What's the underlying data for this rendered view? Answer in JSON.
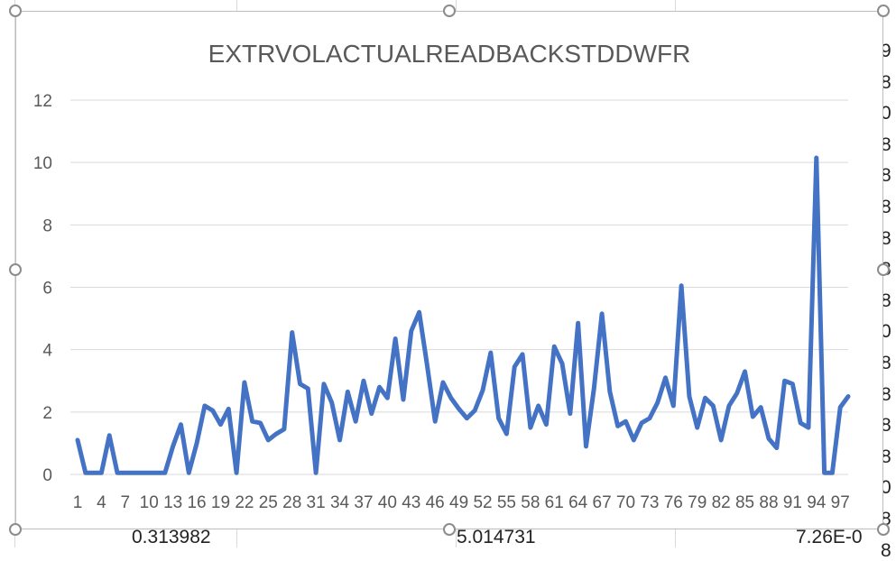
{
  "sheet": {
    "bottom_cells": [
      "0.313982",
      "5.014731",
      "7.26E-0"
    ],
    "right_fragments": [
      "9",
      "8",
      "0",
      "8",
      "8",
      "8",
      "8",
      "8",
      "8",
      "0",
      "8",
      "8",
      "8",
      "8",
      "0",
      "8",
      "8"
    ]
  },
  "chart_data": {
    "type": "line",
    "title": "EXTRVOLACTUALREADBACKSTDDWFR",
    "xlabel": "",
    "ylabel": "",
    "ylim": [
      0,
      12
    ],
    "yticks": [
      0,
      2,
      4,
      6,
      8,
      10,
      12
    ],
    "x_tick_labels": [
      "1",
      "4",
      "7",
      "10",
      "13",
      "16",
      "19",
      "22",
      "25",
      "28",
      "31",
      "34",
      "37",
      "40",
      "43",
      "46",
      "49",
      "52",
      "55",
      "58",
      "61",
      "64",
      "67",
      "70",
      "73",
      "76",
      "79",
      "82",
      "85",
      "88",
      "91",
      "94",
      "97"
    ],
    "grid": "horizontal",
    "legend": "none",
    "line_color": "#4472c4",
    "series": [
      {
        "values": [
          1.1,
          0.05,
          0.05,
          0.05,
          1.25,
          0.05,
          0.05,
          0.05,
          0.05,
          0.05,
          0.05,
          0.05,
          0.9,
          1.6,
          0.05,
          1.0,
          2.2,
          2.05,
          1.6,
          2.1,
          0.05,
          2.95,
          1.7,
          1.65,
          1.1,
          1.3,
          1.45,
          4.55,
          2.9,
          2.75,
          0.05,
          2.9,
          2.3,
          1.1,
          2.65,
          1.7,
          3.0,
          1.95,
          2.8,
          2.45,
          4.35,
          2.4,
          4.6,
          5.2,
          3.5,
          1.7,
          2.95,
          2.45,
          2.1,
          1.8,
          2.05,
          2.7,
          3.9,
          1.8,
          1.3,
          3.45,
          3.85,
          1.5,
          2.2,
          1.6,
          4.1,
          3.55,
          1.95,
          4.85,
          0.9,
          2.75,
          5.15,
          2.65,
          1.55,
          1.7,
          1.1,
          1.65,
          1.8,
          2.3,
          3.1,
          2.2,
          6.05,
          2.5,
          1.5,
          2.45,
          2.2,
          1.1,
          2.2,
          2.6,
          3.3,
          1.85,
          2.15,
          1.15,
          0.85,
          3.0,
          2.9,
          1.65,
          1.5,
          10.15,
          0.05,
          0.05,
          2.15,
          2.5
        ]
      }
    ]
  }
}
